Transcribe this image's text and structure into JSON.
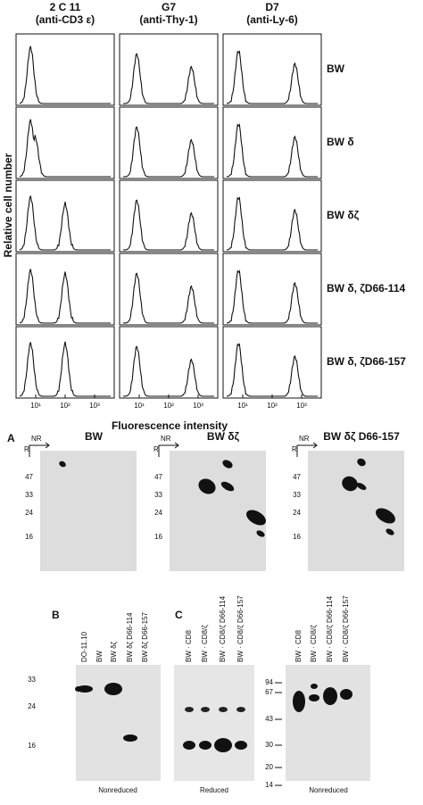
{
  "flow": {
    "columns": [
      {
        "clone": "2 C 11",
        "antibody": "(anti-CD3 ε)"
      },
      {
        "clone": "G7",
        "antibody": "(anti-Thy-1)"
      },
      {
        "clone": "D7",
        "antibody": "(anti-Ly-6)"
      }
    ],
    "rows": [
      "BW",
      "BW δ",
      "BW δζ",
      "BW δ, ζD66-114",
      "BW δ, ζD66-157"
    ],
    "y_label": "Relative cell number",
    "x_label": "Fluorescence intensity",
    "x_ticks": [
      "10¹",
      "10²",
      "10³"
    ]
  },
  "panel_a": {
    "letter": "A",
    "nr": "NR",
    "r": "R",
    "blots": [
      "BW",
      "BW δζ",
      "BW δζ D66-157"
    ],
    "markers": [
      "47",
      "33",
      "24",
      "16"
    ]
  },
  "panel_b": {
    "letter": "B",
    "lanes": [
      "DO-11.10",
      "BW",
      "BW δζ",
      "BW δζ D66-114",
      "BW δζ D66-157"
    ],
    "markers": [
      "33",
      "24",
      "16"
    ],
    "caption": "Nonreduced"
  },
  "panel_c": {
    "letter": "C",
    "lanes": [
      "BW · CD8",
      "BW · CD8/ζ",
      "BW · CD8/ζ D66-114",
      "BW · CD8/ζ D66-157"
    ],
    "markers": [
      "94",
      "67",
      "43",
      "30",
      "20",
      "14"
    ],
    "captions": [
      "Reduced",
      "Nonreduced"
    ]
  }
}
